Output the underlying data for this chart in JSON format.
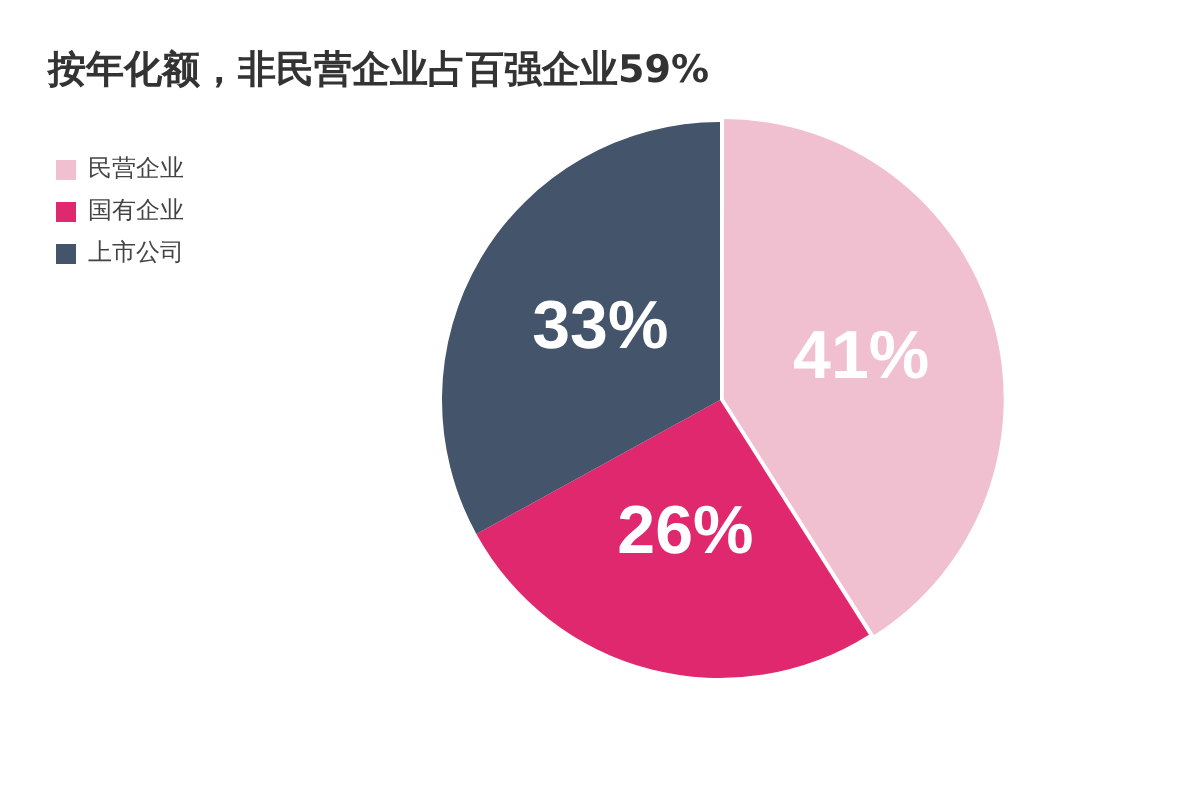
{
  "chart_data": {
    "type": "pie",
    "title": "按年化额，非民营企业占百强企业59%",
    "categories": [
      "民营企业",
      "国有企业",
      "上市公司"
    ],
    "values": [
      41,
      26,
      33
    ],
    "value_labels": [
      "41%",
      "26%",
      "33%"
    ],
    "colors": [
      "#f0c0d0",
      "#e0286e",
      "#44546a"
    ],
    "legend": "top left"
  }
}
